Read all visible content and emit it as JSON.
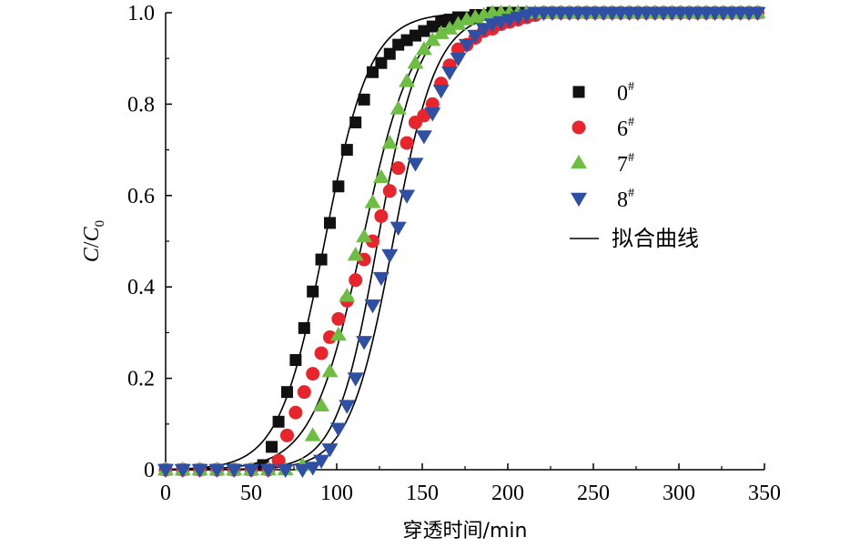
{
  "chart_data": {
    "type": "scatter",
    "xlabel": "穿透时间/min",
    "ylabel": {
      "main": "C",
      "slash": "/",
      "sub_main": "C",
      "sub": "0"
    },
    "xlim": [
      0,
      350
    ],
    "ylim": [
      0,
      1.0
    ],
    "xticks": [
      0,
      50,
      100,
      150,
      200,
      250,
      300,
      350
    ],
    "xtick_labels": [
      "0",
      "50",
      "100",
      "150",
      "200",
      "250",
      "300",
      "350"
    ],
    "yticks": [
      0,
      0.2,
      0.4,
      0.6,
      0.8,
      1.0
    ],
    "ytick_labels": [
      "0",
      "0.2",
      "0.4",
      "0.6",
      "0.8",
      "1.0"
    ],
    "grid": false,
    "legend_position": "right-middle",
    "series": [
      {
        "name": "0",
        "superscript": "#",
        "marker": "square",
        "color": "#111111",
        "x": [
          0,
          10,
          20,
          30,
          40,
          50,
          57,
          62,
          66,
          71,
          76,
          81,
          86,
          91,
          96,
          101,
          106,
          111,
          116,
          121,
          126,
          131,
          136,
          141,
          146,
          151,
          156,
          161,
          166,
          171,
          176,
          181,
          186,
          191,
          196,
          201,
          206,
          211,
          216,
          221,
          226,
          231,
          236,
          241,
          246,
          251,
          256,
          261,
          266,
          271,
          276,
          281,
          286,
          291,
          296,
          301,
          306,
          311,
          316,
          321,
          326,
          331,
          336,
          341,
          346
        ],
        "y": [
          0,
          0,
          0,
          0,
          0,
          0,
          0.01,
          0.05,
          0.105,
          0.17,
          0.24,
          0.31,
          0.39,
          0.46,
          0.54,
          0.62,
          0.7,
          0.76,
          0.81,
          0.87,
          0.89,
          0.91,
          0.93,
          0.94,
          0.95,
          0.96,
          0.97,
          0.98,
          0.985,
          0.99,
          0.99,
          0.995,
          0.995,
          1,
          1,
          1,
          1,
          1,
          1,
          1,
          1,
          1,
          1,
          1,
          1,
          1,
          1,
          1,
          1,
          1,
          1,
          1,
          1,
          1,
          1,
          1,
          1,
          1,
          1,
          1,
          1,
          1,
          1,
          1,
          1
        ]
      },
      {
        "name": "6",
        "superscript": "#",
        "marker": "circle",
        "color": "#e8242c",
        "x": [
          0,
          10,
          20,
          30,
          40,
          50,
          60,
          66,
          71,
          76,
          81,
          86,
          91,
          96,
          101,
          106,
          111,
          116,
          121,
          126,
          131,
          136,
          141,
          146,
          151,
          156,
          161,
          166,
          171,
          176,
          181,
          186,
          191,
          196,
          201,
          206,
          211,
          216,
          221,
          226,
          231,
          236,
          241,
          246,
          251,
          256,
          261,
          266,
          271,
          276,
          281,
          286,
          291,
          296,
          301,
          306,
          311,
          316,
          321,
          326,
          331,
          336,
          341,
          346
        ],
        "y": [
          0,
          0,
          0,
          0,
          0,
          0,
          0,
          0.02,
          0.075,
          0.125,
          0.17,
          0.21,
          0.255,
          0.29,
          0.33,
          0.37,
          0.415,
          0.46,
          0.5,
          0.555,
          0.61,
          0.66,
          0.715,
          0.76,
          0.775,
          0.8,
          0.845,
          0.885,
          0.92,
          0.93,
          0.945,
          0.96,
          0.965,
          0.975,
          0.98,
          0.985,
          0.99,
          0.995,
          1,
          1,
          1,
          1,
          1,
          1,
          1,
          1,
          1,
          1,
          1,
          1,
          1,
          1,
          1,
          1,
          1,
          1,
          1,
          1,
          1,
          1,
          1,
          1,
          1,
          1
        ]
      },
      {
        "name": "7",
        "superscript": "#",
        "marker": "triangle-up",
        "color": "#6fbe44",
        "x": [
          0,
          10,
          20,
          30,
          40,
          50,
          60,
          70,
          80,
          86,
          91,
          96,
          101,
          106,
          111,
          116,
          121,
          126,
          131,
          136,
          141,
          146,
          151,
          156,
          161,
          166,
          171,
          176,
          181,
          186,
          191,
          196,
          201,
          206,
          211,
          216,
          221,
          226,
          231,
          236,
          241,
          246,
          251,
          256,
          261,
          266,
          271,
          276,
          281,
          286,
          291,
          296,
          301,
          306,
          311,
          316,
          321,
          326,
          331,
          336,
          341,
          346
        ],
        "y": [
          0,
          0,
          0,
          0,
          0,
          0,
          0,
          0,
          0.01,
          0.075,
          0.14,
          0.215,
          0.295,
          0.38,
          0.47,
          0.51,
          0.585,
          0.64,
          0.715,
          0.79,
          0.85,
          0.89,
          0.92,
          0.94,
          0.955,
          0.965,
          0.975,
          0.985,
          0.99,
          0.995,
          1,
          1,
          1,
          1,
          1,
          1,
          1,
          1,
          1,
          1,
          1,
          1,
          1,
          1,
          1,
          1,
          1,
          1,
          1,
          1,
          1,
          1,
          1,
          1,
          1,
          1,
          1,
          1,
          1,
          1,
          1,
          1
        ]
      },
      {
        "name": "8",
        "superscript": "#",
        "marker": "triangle-down",
        "color": "#2e4fa3",
        "x": [
          0,
          10,
          20,
          30,
          40,
          50,
          60,
          70,
          80,
          86,
          91,
          96,
          101,
          106,
          111,
          116,
          121,
          126,
          131,
          136,
          141,
          146,
          151,
          156,
          161,
          166,
          171,
          176,
          181,
          186,
          191,
          196,
          201,
          206,
          211,
          216,
          221,
          226,
          231,
          236,
          241,
          246,
          251,
          256,
          261,
          266,
          271,
          276,
          281,
          286,
          291,
          296,
          301,
          306,
          311,
          316,
          321,
          326,
          331,
          336,
          341,
          346
        ],
        "y": [
          0,
          0,
          0,
          0,
          0,
          0,
          0,
          0,
          0,
          0.005,
          0.02,
          0.045,
          0.09,
          0.14,
          0.2,
          0.28,
          0.36,
          0.42,
          0.47,
          0.53,
          0.6,
          0.67,
          0.73,
          0.78,
          0.83,
          0.87,
          0.9,
          0.93,
          0.95,
          0.965,
          0.975,
          0.98,
          0.985,
          0.99,
          0.995,
          1,
          1,
          1,
          1,
          1,
          1,
          1,
          1,
          1,
          1,
          1,
          1,
          1,
          1,
          1,
          1,
          1,
          1,
          1,
          1,
          1,
          1,
          1,
          1,
          1,
          1,
          1
        ]
      }
    ],
    "fit_curves": [
      {
        "series": "0",
        "midpoint": 93,
        "steepness": 0.075
      },
      {
        "series": "6",
        "midpoint": 124,
        "steepness": 0.083
      },
      {
        "series": "7",
        "midpoint": 115,
        "steepness": 0.068
      },
      {
        "series": "8",
        "midpoint": 133,
        "steepness": 0.078
      }
    ],
    "fit_label": "拟合曲线"
  }
}
